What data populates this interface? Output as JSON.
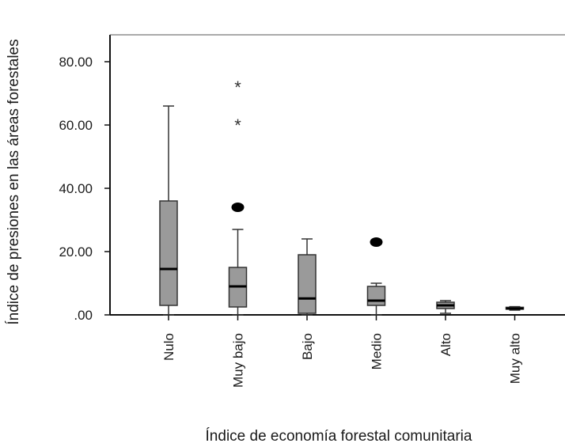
{
  "chart_data": {
    "type": "box",
    "title": "",
    "xlabel": "Índice de economía forestal comunitaria",
    "ylabel": "Índice de presiones en las áreas forestales",
    "ylim": [
      0,
      87
    ],
    "yticks": [
      0,
      20,
      40,
      60,
      80
    ],
    "ytick_labels": [
      ".00",
      "20.00",
      "40.00",
      "60.00",
      "80.00"
    ],
    "grid": false,
    "box_color": "#9a9a9a",
    "categories": [
      "Nulo",
      "Muy bajo",
      "Bajo",
      "Medio",
      "Alto",
      "Muy alto"
    ],
    "boxes": [
      {
        "category": "Nulo",
        "whisker_low": 0,
        "q1": 3,
        "median": 14.5,
        "q3": 36,
        "whisker_high": 66,
        "outliers": [],
        "extremes": []
      },
      {
        "category": "Muy bajo",
        "whisker_low": 0,
        "q1": 2.5,
        "median": 9,
        "q3": 15,
        "whisker_high": 27,
        "outliers": [
          34
        ],
        "extremes": [
          60,
          72
        ]
      },
      {
        "category": "Bajo",
        "whisker_low": 0,
        "q1": 0.5,
        "median": 5.2,
        "q3": 19,
        "whisker_high": 24,
        "outliers": [],
        "extremes": []
      },
      {
        "category": "Medio",
        "whisker_low": 0,
        "q1": 3,
        "median": 4.5,
        "q3": 9,
        "whisker_high": 10,
        "outliers": [
          23
        ],
        "extremes": []
      },
      {
        "category": "Alto",
        "whisker_low": 0.5,
        "q1": 2,
        "median": 3,
        "q3": 4,
        "whisker_high": 4.5,
        "outliers": [],
        "extremes": []
      },
      {
        "category": "Muy alto",
        "whisker_low": 1.5,
        "q1": 1.8,
        "median": 2,
        "q3": 2.4,
        "whisker_high": 2.6,
        "outliers": [],
        "extremes": []
      }
    ]
  }
}
